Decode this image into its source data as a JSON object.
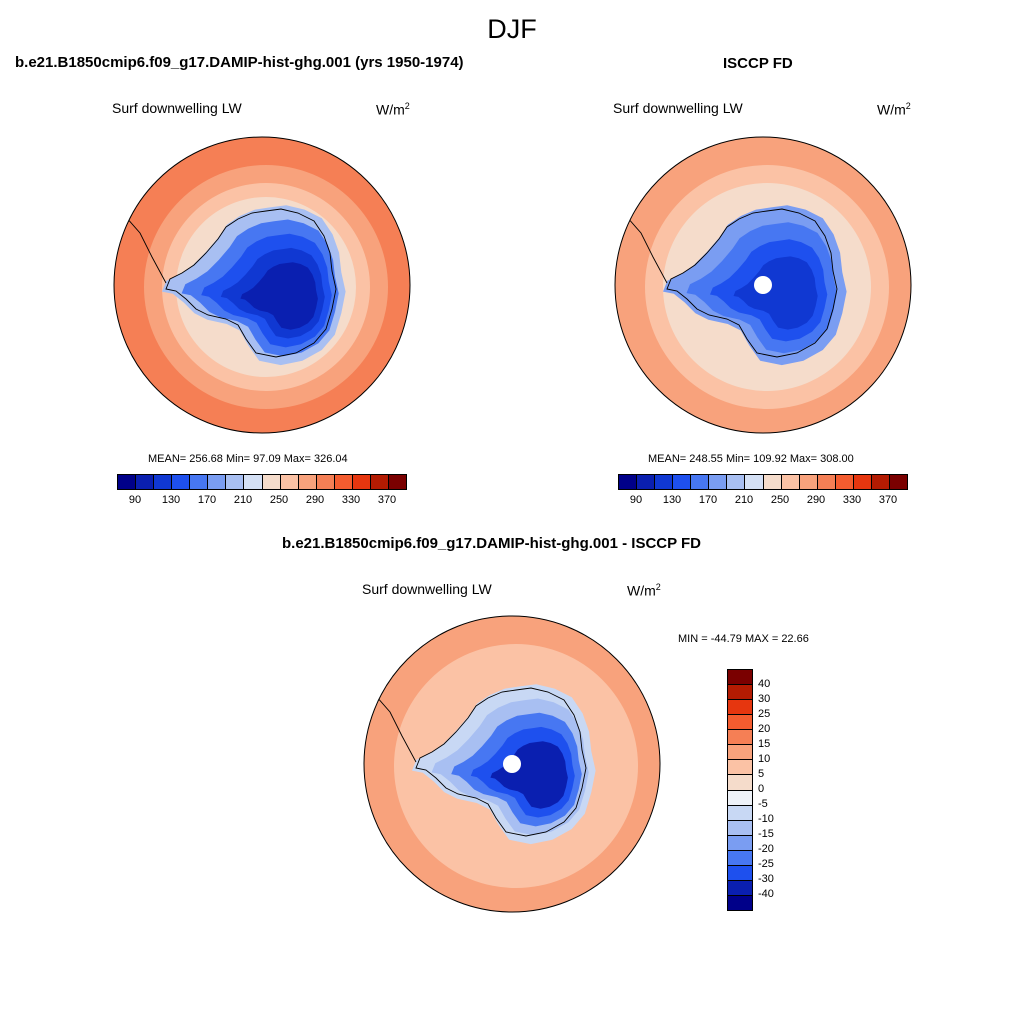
{
  "page": {
    "title": "DJF"
  },
  "chart_data": [
    {
      "type": "heatmap",
      "projection": "south-polar-stereographic",
      "title": "b.e21.B1850cmip6.f09_g17.DAMIP-hist-ghg.001 (yrs 1950-1974)",
      "variable": "Surf downwelling LW",
      "units": "W/m",
      "units_exp": "2",
      "stats": {
        "mean": "256.68",
        "min": "97.09",
        "max": "326.04"
      },
      "stats_text": "MEAN= 256.68  Min=  97.09  Max= 326.04",
      "colorbar": {
        "levels": [
          90,
          110,
          130,
          150,
          170,
          190,
          210,
          230,
          250,
          270,
          290,
          310,
          330,
          350,
          370
        ],
        "tick_labels": [
          "90",
          "130",
          "170",
          "210",
          "250",
          "290",
          "330",
          "370"
        ],
        "colors": [
          "#000089",
          "#0a1fb0",
          "#1038d2",
          "#1e50ee",
          "#4777f2",
          "#7a9df2",
          "#a8bff2",
          "#d4e0f5",
          "#f5dccb",
          "#fbc2a5",
          "#f8a27c",
          "#f57f55",
          "#f45c2f",
          "#e6360f",
          "#b31b02",
          "#7a0000"
        ]
      },
      "rings": [
        {
          "level": "310-330",
          "color": "#f57f55"
        },
        {
          "level": "290-310",
          "color": "#f8a27c"
        },
        {
          "level": "270-290",
          "color": "#fbc2a5"
        },
        {
          "level": "250-270",
          "color": "#f5dccb"
        }
      ],
      "antarctica": [
        {
          "level": "210-230",
          "color": "#a8bff2"
        },
        {
          "level": "150-170",
          "color": "#4777f2"
        },
        {
          "level": "130-150",
          "color": "#1e50ee"
        },
        {
          "level": "110-130",
          "color": "#1038d2"
        },
        {
          "level": "90-110",
          "color": "#0a1fb0"
        }
      ]
    },
    {
      "type": "heatmap",
      "projection": "south-polar-stereographic",
      "title": "ISCCP FD",
      "variable": "Surf downwelling LW",
      "units": "W/m",
      "units_exp": "2",
      "stats": {
        "mean": "248.55",
        "min": "109.92",
        "max": "308.00"
      },
      "stats_text": "MEAN= 248.55  Min= 109.92  Max= 308.00",
      "colorbar": {
        "levels": [
          90,
          110,
          130,
          150,
          170,
          190,
          210,
          230,
          250,
          270,
          290,
          310,
          330,
          350,
          370
        ],
        "tick_labels": [
          "90",
          "130",
          "170",
          "210",
          "250",
          "290",
          "330",
          "370"
        ],
        "colors": [
          "#000089",
          "#0a1fb0",
          "#1038d2",
          "#1e50ee",
          "#4777f2",
          "#7a9df2",
          "#a8bff2",
          "#d4e0f5",
          "#f5dccb",
          "#fbc2a5",
          "#f8a27c",
          "#f57f55",
          "#f45c2f",
          "#e6360f",
          "#b31b02",
          "#7a0000"
        ]
      },
      "rings": [
        {
          "level": "290-310",
          "color": "#f8a27c"
        },
        {
          "level": "270-290",
          "color": "#fbc2a5"
        },
        {
          "level": "250-270",
          "color": "#f5dccb"
        }
      ],
      "antarctica": [
        {
          "level": "190-210",
          "color": "#7a9df2"
        },
        {
          "level": "150-170",
          "color": "#4777f2"
        },
        {
          "level": "130-150",
          "color": "#1e50ee"
        },
        {
          "level": "110-130",
          "color": "#1038d2"
        }
      ],
      "missing_pole": true
    },
    {
      "type": "heatmap",
      "projection": "south-polar-stereographic",
      "title": "b.e21.B1850cmip6.f09_g17.DAMIP-hist-ghg.001 - ISCCP FD",
      "variable": "Surf downwelling LW",
      "units": "W/m",
      "units_exp": "2",
      "stats": {
        "min": "-44.79",
        "max": "22.66"
      },
      "stats_text": "MIN = -44.79 MAX =  22.66",
      "colorbar": {
        "levels": [
          -40,
          -30,
          -25,
          -20,
          -15,
          -10,
          -5,
          0,
          5,
          10,
          15,
          20,
          25,
          30,
          40
        ],
        "tick_labels": [
          "40",
          "30",
          "25",
          "20",
          "15",
          "10",
          "5",
          "0",
          "-5",
          "-10",
          "-15",
          "-20",
          "-25",
          "-30",
          "-40"
        ],
        "colors": [
          "#7a0000",
          "#b31b02",
          "#e6360f",
          "#f45c2f",
          "#f57f55",
          "#f8a27c",
          "#fbc2a5",
          "#f5dccb",
          "#eef2f8",
          "#c8d8f4",
          "#a8bff2",
          "#7a9df2",
          "#4777f2",
          "#1e50ee",
          "#0a1fb0",
          "#000089"
        ]
      },
      "rings": [
        {
          "level": "10-15",
          "color": "#f8a27c"
        },
        {
          "level": "5-10",
          "color": "#fbc2a5"
        }
      ],
      "antarctica": [
        {
          "level": "-5-0",
          "color": "#c8d8f4"
        },
        {
          "level": "-10--5",
          "color": "#a8bff2"
        },
        {
          "level": "-20--15",
          "color": "#4777f2"
        },
        {
          "level": "-30--25",
          "color": "#1e50ee"
        },
        {
          "level": "-40--30",
          "color": "#0a1fb0"
        }
      ],
      "missing_pole": true
    }
  ]
}
